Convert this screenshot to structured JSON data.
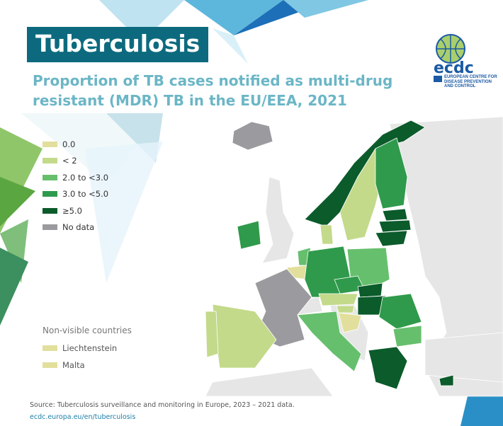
{
  "header": {
    "title": "Tuberculosis",
    "subtitle": "Proportion of TB cases notified as multi-drug resistant (MDR) TB in the EU/EEA, 2021"
  },
  "logo": {
    "text": "ecdc",
    "tagline": "EUROPEAN CENTRE FOR DISEASE PREVENTION AND CONTROL"
  },
  "legend": {
    "items": [
      {
        "label": "0.0",
        "color": "#e2df9c"
      },
      {
        "label": "< 2",
        "color": "#c3da8b"
      },
      {
        "label": "2.0 to <3.0",
        "color": "#66bf6d"
      },
      {
        "label": "3.0 to <5.0",
        "color": "#2f9a4b"
      },
      {
        "label": "≥5.0",
        "color": "#0b5b2b"
      },
      {
        "label": "No data",
        "color": "#9b9b9f"
      }
    ]
  },
  "non_visible": {
    "heading": "Non-visible countries",
    "items": [
      {
        "label": "Liechtenstein",
        "color": "#e2df9c"
      },
      {
        "label": "Malta",
        "color": "#e2df9c"
      }
    ]
  },
  "map": {
    "countries": [
      {
        "name": "Iceland",
        "category": "No data"
      },
      {
        "name": "Norway",
        "category": "≥5.0"
      },
      {
        "name": "Sweden",
        "category": "< 2"
      },
      {
        "name": "Finland",
        "category": "3.0 to <5.0"
      },
      {
        "name": "Estonia",
        "category": "≥5.0"
      },
      {
        "name": "Latvia",
        "category": "≥5.0"
      },
      {
        "name": "Lithuania",
        "category": "≥5.0"
      },
      {
        "name": "Denmark",
        "category": "< 2"
      },
      {
        "name": "Ireland",
        "category": "3.0 to <5.0"
      },
      {
        "name": "Netherlands",
        "category": "2.0 to <3.0"
      },
      {
        "name": "Belgium",
        "category": "0.0"
      },
      {
        "name": "Germany",
        "category": "3.0 to <5.0"
      },
      {
        "name": "Poland",
        "category": "2.0 to <3.0"
      },
      {
        "name": "Czechia",
        "category": "3.0 to <5.0"
      },
      {
        "name": "Slovakia",
        "category": "≥5.0"
      },
      {
        "name": "Austria",
        "category": "< 2"
      },
      {
        "name": "Hungary",
        "category": "≥5.0"
      },
      {
        "name": "Slovenia",
        "category": "< 2"
      },
      {
        "name": "Croatia",
        "category": "0.0"
      },
      {
        "name": "Romania",
        "category": "3.0 to <5.0"
      },
      {
        "name": "Bulgaria",
        "category": "2.0 to <3.0"
      },
      {
        "name": "Greece",
        "category": "≥5.0"
      },
      {
        "name": "Italy",
        "category": "2.0 to <3.0"
      },
      {
        "name": "France",
        "category": "No data"
      },
      {
        "name": "Spain",
        "category": "< 2"
      },
      {
        "name": "Portugal",
        "category": "< 2"
      },
      {
        "name": "Cyprus",
        "category": "≥5.0"
      }
    ]
  },
  "footer": {
    "source": "Source: Tuberculosis surveillance and monitoring in Europe, 2023 – 2021 data.",
    "link": "ecdc.europa.eu/en/tuberculosis"
  }
}
